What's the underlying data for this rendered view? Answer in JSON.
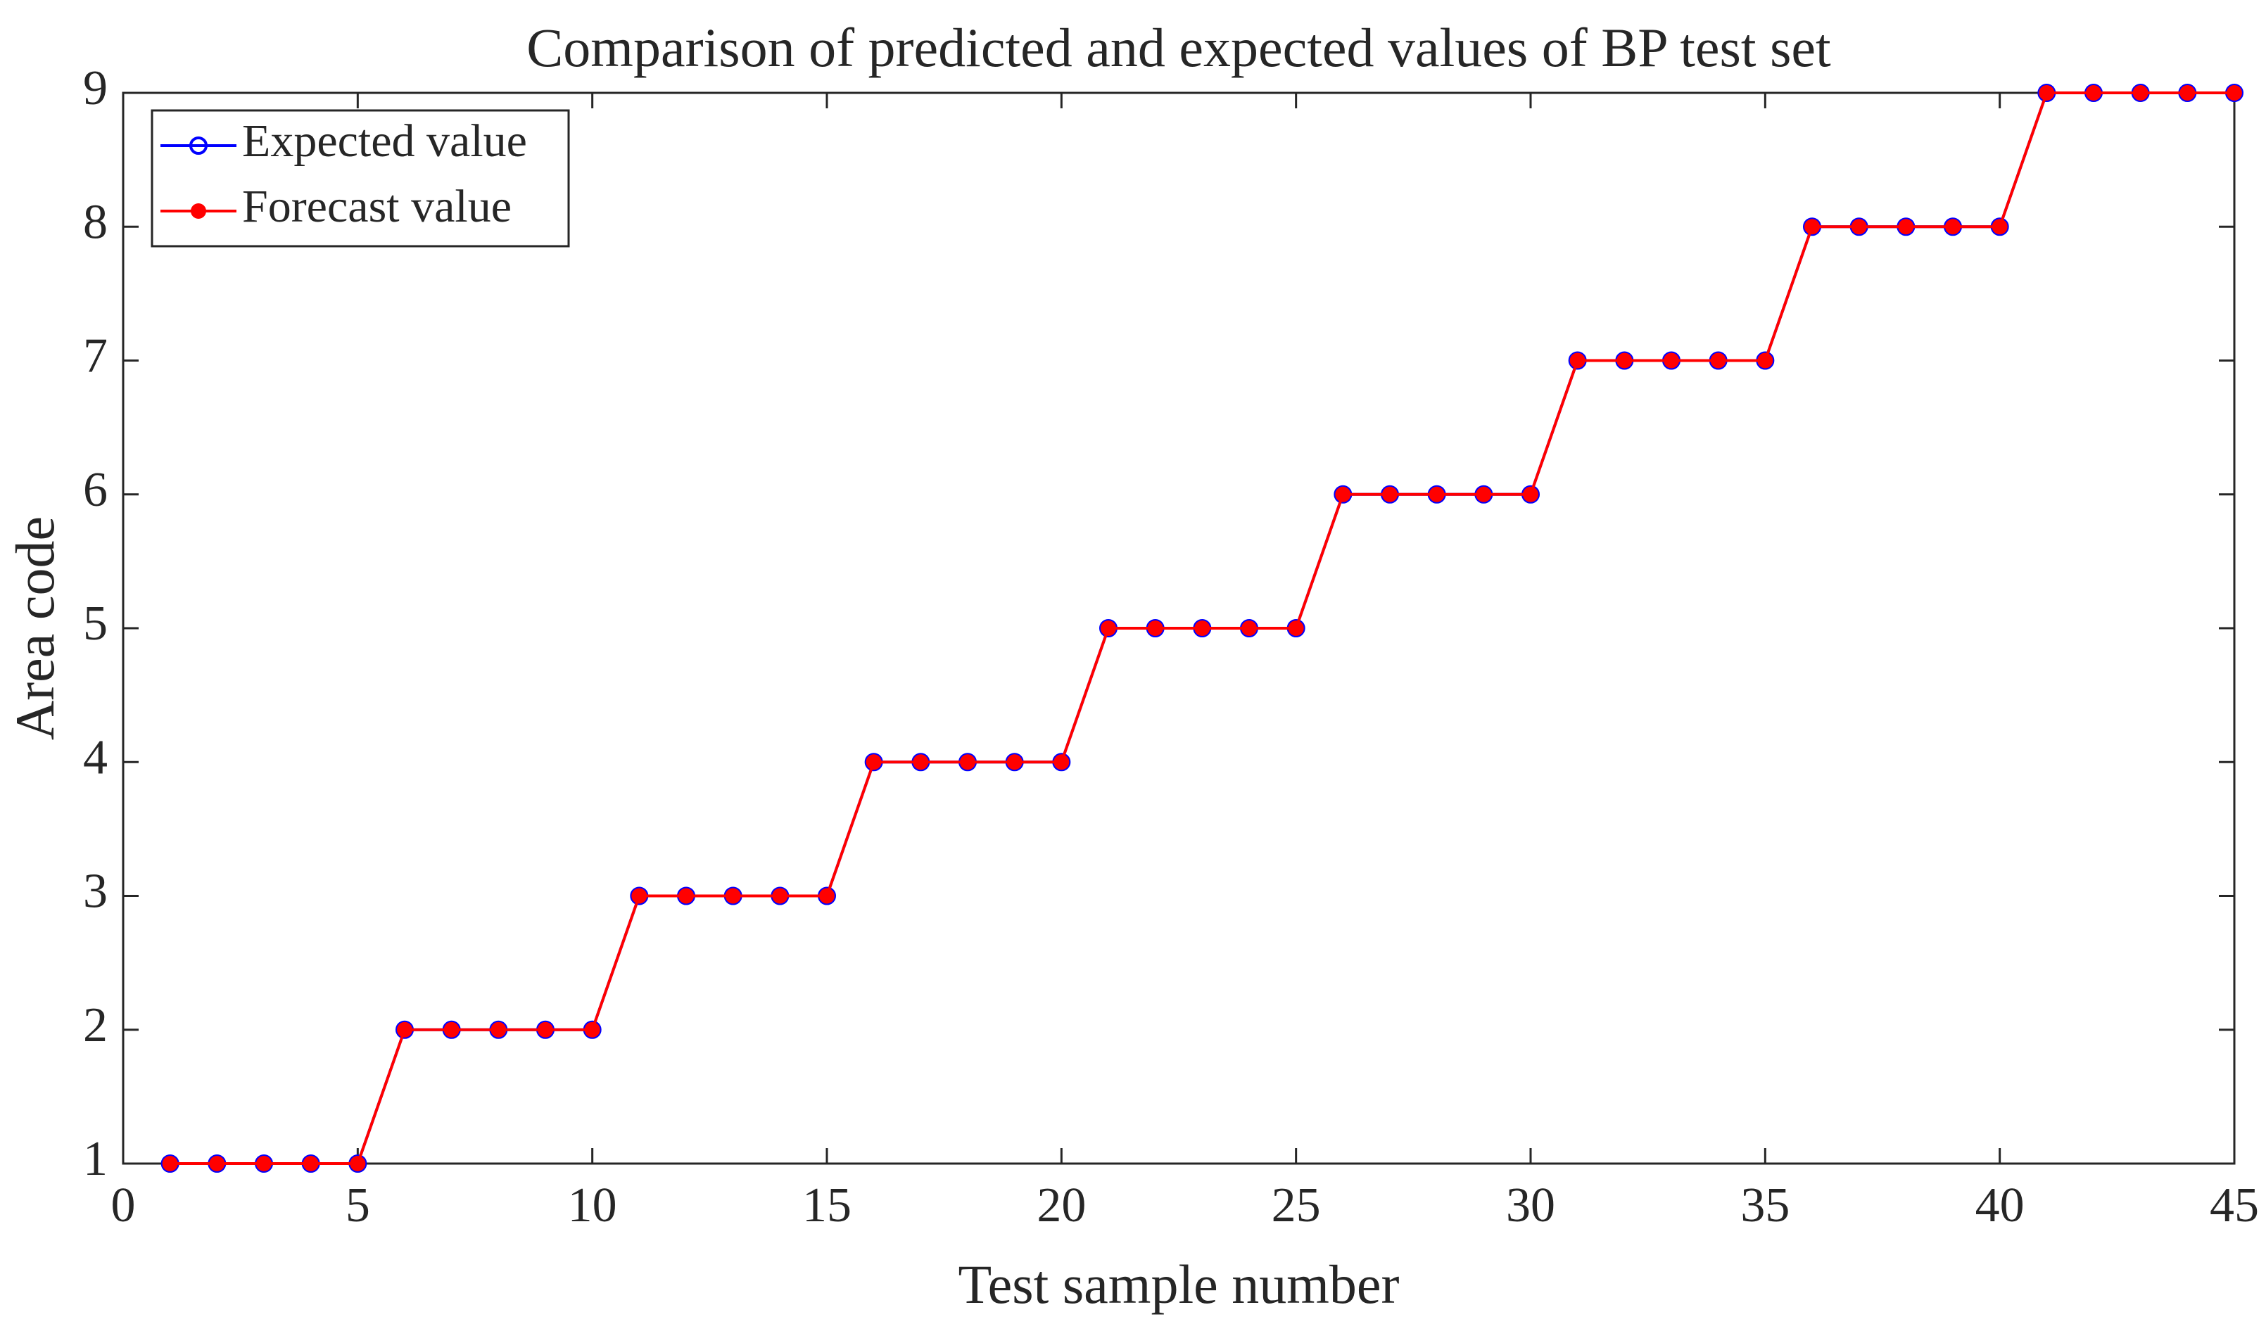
{
  "chart_data": {
    "type": "line",
    "title": "Comparison of predicted and expected values of BP test set",
    "x_label": "Test sample number",
    "y_label": "Area code",
    "x": [
      1,
      2,
      3,
      4,
      5,
      6,
      7,
      8,
      9,
      10,
      11,
      12,
      13,
      14,
      15,
      16,
      17,
      18,
      19,
      20,
      21,
      22,
      23,
      24,
      25,
      26,
      27,
      28,
      29,
      30,
      31,
      32,
      33,
      34,
      35,
      36,
      37,
      38,
      39,
      40,
      41,
      42,
      43,
      44,
      45
    ],
    "series": [
      {
        "name": "Expected value",
        "color": "#0000ff",
        "marker": "circle",
        "values": [
          1,
          1,
          1,
          1,
          1,
          2,
          2,
          2,
          2,
          2,
          3,
          3,
          3,
          3,
          3,
          4,
          4,
          4,
          4,
          4,
          5,
          5,
          5,
          5,
          5,
          6,
          6,
          6,
          6,
          6,
          7,
          7,
          7,
          7,
          7,
          8,
          8,
          8,
          8,
          8,
          9,
          9,
          9,
          9,
          9
        ]
      },
      {
        "name": "Forecast value",
        "color": "#ff0000",
        "marker": "star",
        "values": [
          1,
          1,
          1,
          1,
          1,
          2,
          2,
          2,
          2,
          2,
          3,
          3,
          3,
          3,
          3,
          4,
          4,
          4,
          4,
          4,
          5,
          5,
          5,
          5,
          5,
          6,
          6,
          6,
          6,
          6,
          7,
          7,
          7,
          7,
          7,
          8,
          8,
          8,
          8,
          8,
          9,
          9,
          9,
          9,
          9
        ]
      }
    ],
    "xlim": [
      0,
      45
    ],
    "xticks": [
      0,
      5,
      10,
      15,
      20,
      25,
      30,
      35,
      40,
      45
    ],
    "ylim": [
      1,
      9
    ],
    "yticks": [
      1,
      2,
      3,
      4,
      5,
      6,
      7,
      8,
      9
    ],
    "legend": "northwest"
  }
}
